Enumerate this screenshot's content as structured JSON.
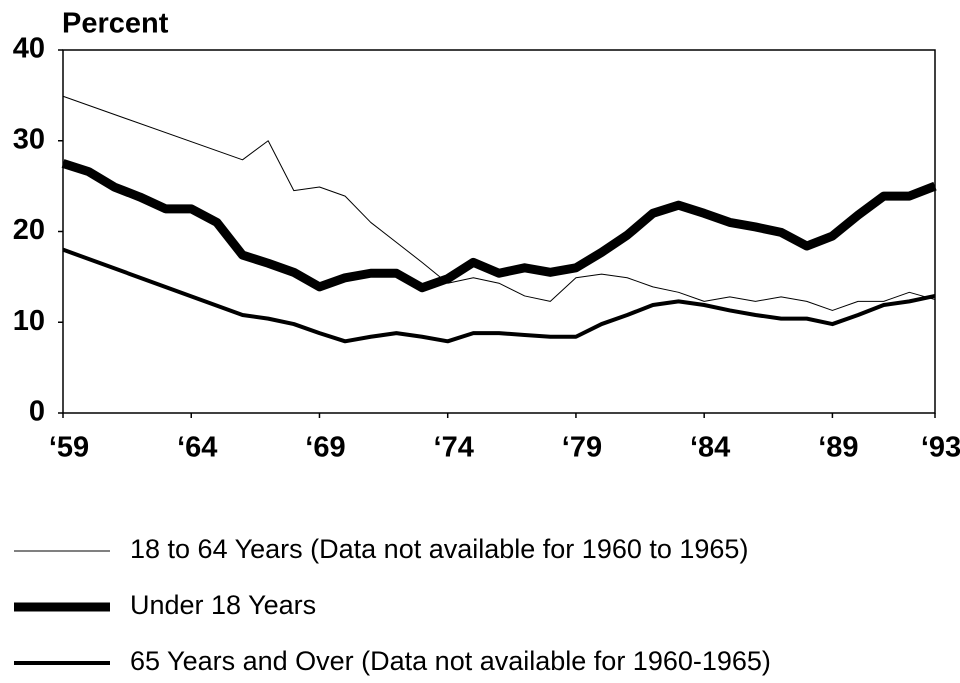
{
  "chart_data": {
    "type": "line",
    "ylabel": "Percent",
    "xlim": [
      1959,
      1993
    ],
    "xticks": [
      {
        "value": 1959,
        "label": "‘59"
      },
      {
        "value": 1964,
        "label": "‘64"
      },
      {
        "value": 1969,
        "label": "‘69"
      },
      {
        "value": 1974,
        "label": "‘74"
      },
      {
        "value": 1979,
        "label": "‘79"
      },
      {
        "value": 1984,
        "label": "‘84"
      },
      {
        "value": 1989,
        "label": "‘89"
      },
      {
        "value": 1993,
        "label": "‘93"
      }
    ],
    "ylim": [
      0,
      40
    ],
    "yticks": [
      0,
      10,
      20,
      30,
      40
    ],
    "series": [
      {
        "name": "18 to 64 Years (Data not available for 1960 to 1965)",
        "color": "#000000",
        "line_width": 1,
        "x": [
          1959,
          1966,
          1967,
          1968,
          1969,
          1970,
          1971,
          1972,
          1973,
          1974,
          1975,
          1976,
          1977,
          1978,
          1979,
          1980,
          1981,
          1982,
          1983,
          1984,
          1985,
          1986,
          1987,
          1988,
          1989,
          1990,
          1991,
          1992,
          1993
        ],
        "values": [
          34.9,
          27.9,
          30.0,
          24.5,
          24.9,
          23.9,
          21.0,
          18.8,
          16.6,
          14.3,
          14.9,
          14.3,
          12.9,
          12.3,
          14.9,
          15.3,
          14.9,
          13.9,
          13.3,
          12.3,
          12.8,
          12.3,
          12.8,
          12.3,
          11.3,
          12.3,
          12.3,
          13.3,
          12.5
        ]
      },
      {
        "name": "Under 18 Years",
        "color": "#000000",
        "line_width": 9,
        "x": [
          1959,
          1960,
          1961,
          1962,
          1963,
          1964,
          1965,
          1966,
          1967,
          1968,
          1969,
          1970,
          1971,
          1972,
          1973,
          1974,
          1975,
          1976,
          1977,
          1978,
          1979,
          1980,
          1981,
          1982,
          1983,
          1984,
          1985,
          1986,
          1987,
          1988,
          1989,
          1990,
          1991,
          1992,
          1993
        ],
        "values": [
          27.5,
          26.6,
          24.9,
          23.8,
          22.5,
          22.5,
          21.0,
          17.4,
          16.5,
          15.5,
          13.9,
          14.9,
          15.4,
          15.4,
          13.8,
          14.8,
          16.6,
          15.4,
          16.0,
          15.5,
          16.0,
          17.7,
          19.6,
          22.0,
          22.9,
          22.0,
          21.0,
          20.5,
          19.9,
          18.4,
          19.5,
          21.8,
          23.9,
          23.9,
          25.0
        ]
      },
      {
        "name": "65 Years and Over (Data not available for 1960-1965)",
        "color": "#000000",
        "line_width": 4,
        "x": [
          1959,
          1966,
          1967,
          1968,
          1969,
          1970,
          1971,
          1972,
          1973,
          1974,
          1975,
          1976,
          1977,
          1978,
          1979,
          1980,
          1981,
          1982,
          1983,
          1984,
          1985,
          1986,
          1987,
          1988,
          1989,
          1990,
          1991,
          1992,
          1993
        ],
        "values": [
          18.0,
          10.8,
          10.4,
          9.8,
          8.8,
          7.9,
          8.4,
          8.8,
          8.4,
          7.9,
          8.8,
          8.8,
          8.6,
          8.4,
          8.4,
          9.8,
          10.8,
          11.9,
          12.3,
          11.9,
          11.3,
          10.8,
          10.4,
          10.4,
          9.8,
          10.8,
          11.9,
          12.3,
          12.9
        ]
      }
    ]
  }
}
